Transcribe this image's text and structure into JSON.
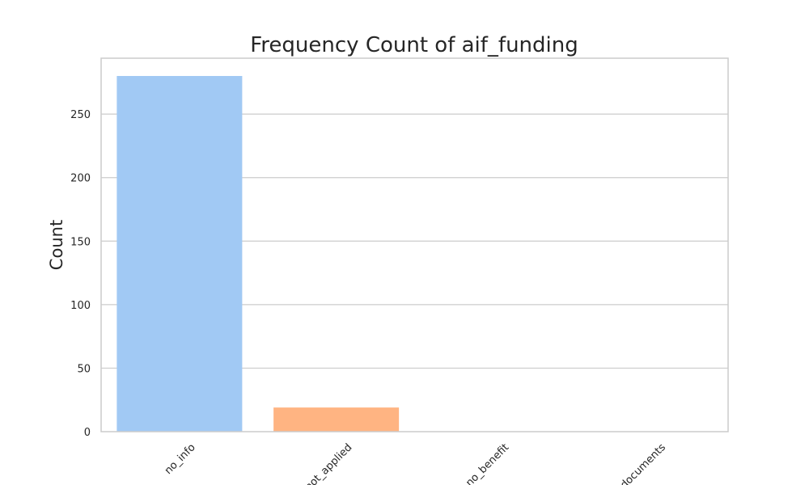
{
  "chart_data": {
    "type": "bar",
    "title": "Frequency Count of aif_funding",
    "xlabel": "",
    "ylabel": "Count",
    "categories": [
      "no_info",
      "not_applied",
      "no_benefit",
      "no_documents"
    ],
    "values": [
      280,
      19,
      0,
      0
    ],
    "colors": [
      "#a1c9f4",
      "#ffb482",
      "#8de5a1",
      "#ff9f9b"
    ],
    "yticks": [
      0,
      50,
      100,
      150,
      200,
      250
    ],
    "ylim": [
      0,
      294
    ],
    "grid": true,
    "xtick_rotation": -45
  }
}
